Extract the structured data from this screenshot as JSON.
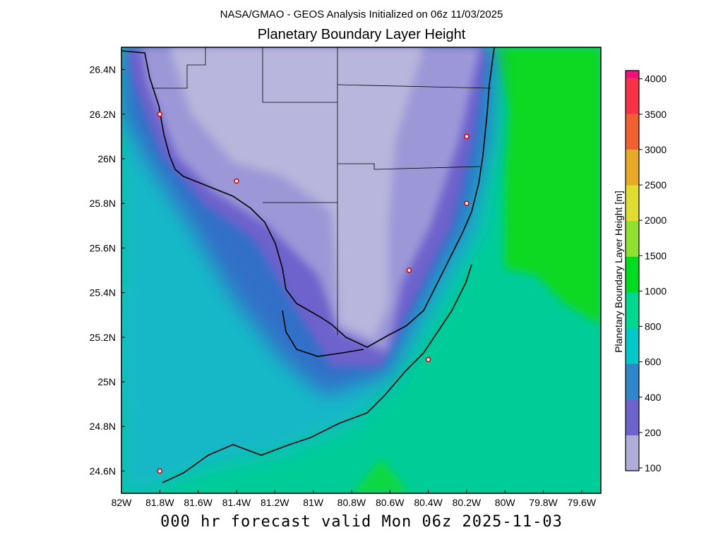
{
  "header": {
    "subtitle": "NASA/GMAO - GEOS Analysis Initialized on 06z 11/03/2025",
    "title": "Planetary Boundary Layer Height"
  },
  "footer": "000 hr forecast valid Mon 06z 2025-11-03",
  "chart_data": {
    "type": "heatmap",
    "title": "Planetary Boundary Layer Height",
    "lon_range": [
      -82.0,
      -79.5
    ],
    "lat_range": [
      24.5,
      26.5
    ],
    "x_ticks": [
      "82W",
      "81.8W",
      "81.6W",
      "81.4W",
      "81.2W",
      "81W",
      "80.8W",
      "80.6W",
      "80.4W",
      "80.2W",
      "80W",
      "79.8W",
      "79.6W"
    ],
    "y_ticks": [
      "26.4N",
      "26.2N",
      "26N",
      "25.8N",
      "25.6N",
      "25.4N",
      "25.2N",
      "25N",
      "24.8N",
      "24.6N"
    ],
    "colorbar": {
      "label": "Planetary Boundary Layer Height [m]",
      "ticks": [
        "100",
        "200",
        "400",
        "600",
        "800",
        "1000",
        "1500",
        "2000",
        "2500",
        "3000",
        "3500",
        "4000"
      ],
      "colors": [
        "#b0acd8",
        "#6e62cc",
        "#2f86c8",
        "#00c8c8",
        "#00d890",
        "#00dc20",
        "#90e030",
        "#e0dc30",
        "#e8a828",
        "#f06030",
        "#f83048",
        "#f01080"
      ]
    },
    "stations": [
      {
        "lon": -81.8,
        "lat": 26.2
      },
      {
        "lon": -81.4,
        "lat": 25.9
      },
      {
        "lon": -80.2,
        "lat": 26.1
      },
      {
        "lon": -80.2,
        "lat": 25.8
      },
      {
        "lon": -80.5,
        "lat": 25.5
      },
      {
        "lon": -80.4,
        "lat": 25.1
      },
      {
        "lon": -81.8,
        "lat": 24.6
      }
    ]
  }
}
